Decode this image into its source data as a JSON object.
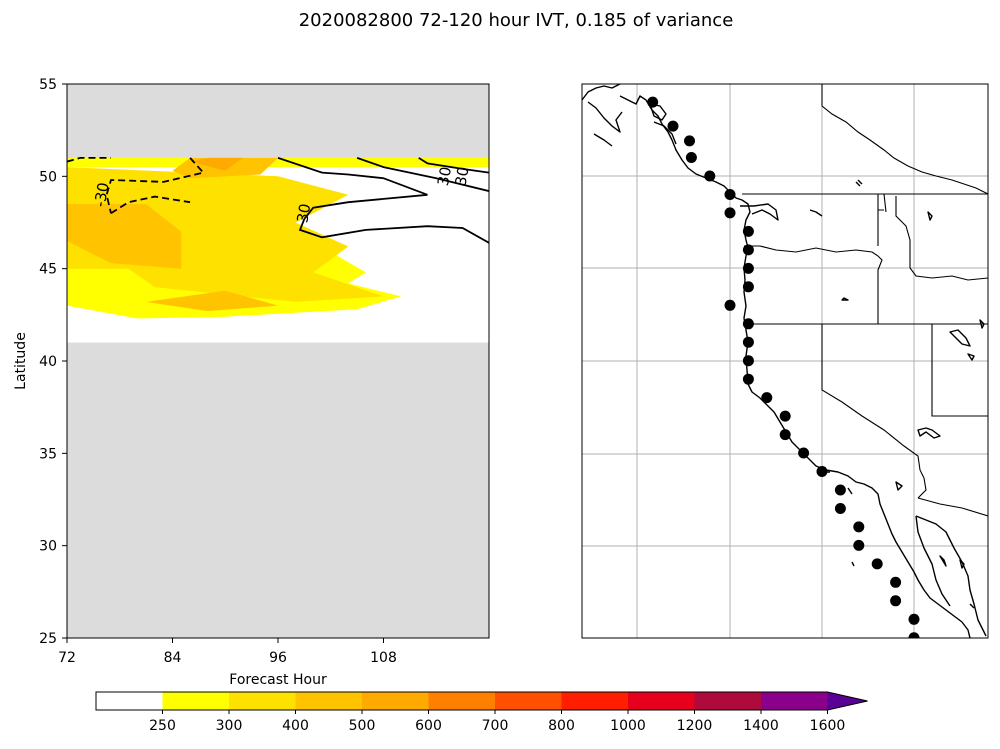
{
  "chart_data": [
    {
      "type": "contour",
      "title": "2020082800 72-120 hour IVT, 0.185 of variance",
      "xlabel": "Forecast Hour",
      "ylabel": "Latitude",
      "xlim": [
        72,
        120
      ],
      "ylim": [
        25,
        55
      ],
      "xticks": [
        72,
        84,
        96,
        108
      ],
      "yticks": [
        25,
        30,
        35,
        40,
        45,
        50,
        55
      ],
      "missing_color": "#dcdcdc",
      "data_lat_range": [
        41,
        51
      ],
      "contour_labels": [
        {
          "text": "-30",
          "x": 76,
          "y": 49
        },
        {
          "text": "30",
          "x": 99,
          "y": 48
        },
        {
          "text": "30",
          "x": 115,
          "y": 50
        },
        {
          "text": "30",
          "x": 117,
          "y": 50
        }
      ],
      "fill_regions": [
        {
          "level": "250-300",
          "color": "#ffff00",
          "polygon": [
            [
              72,
              43
            ],
            [
              76,
              44.3
            ],
            [
              72,
              45
            ],
            [
              72,
              50.5
            ],
            [
              96,
              50.5
            ],
            [
              120,
              50.5
            ],
            [
              120,
              51
            ],
            [
              72,
              51
            ],
            [
              72,
              50
            ],
            [
              76,
              47
            ],
            [
              72,
              46
            ],
            [
              72,
              43
            ],
            [
              80,
              42.3
            ],
            [
              90,
              42.4
            ],
            [
              105,
              42.8
            ],
            [
              110,
              43.5
            ],
            [
              104,
              44.2
            ],
            [
              106,
              44.8
            ],
            [
              98,
              47
            ],
            [
              92,
              47
            ],
            [
              84,
              47.3
            ],
            [
              80,
              48.3
            ],
            [
              72,
              47.5
            ]
          ]
        },
        {
          "level": "300-400",
          "color": "#ffe100",
          "polygon": [
            [
              72,
              45
            ],
            [
              79,
              45
            ],
            [
              82,
              44
            ],
            [
              98,
              43.2
            ],
            [
              108,
              43.5
            ],
            [
              100,
              44.8
            ],
            [
              104,
              46.2
            ],
            [
              98,
              47.5
            ],
            [
              104,
              49
            ],
            [
              96,
              50
            ],
            [
              72,
              50.5
            ]
          ]
        },
        {
          "level": "400-500",
          "color": "#ffc300",
          "polygon": [
            [
              72,
              46.5
            ],
            [
              77,
              45.3
            ],
            [
              85,
              45
            ],
            [
              85,
              47
            ],
            [
              81,
              48.5
            ],
            [
              72,
              48.5
            ]
          ]
        },
        {
          "level": "400-500",
          "color": "#ffc300",
          "polygon": [
            [
              81,
              43.2
            ],
            [
              88,
              42.7
            ],
            [
              96,
              43
            ],
            [
              90,
              43.8
            ]
          ]
        },
        {
          "level": "400-500",
          "color": "#ffc300",
          "polygon": [
            [
              84,
              50.3
            ],
            [
              86,
              51
            ],
            [
              96,
              51
            ],
            [
              94,
              50.1
            ],
            [
              86,
              49.9
            ]
          ]
        },
        {
          "level": "500-600",
          "color": "#ffaa00",
          "polygon": [
            [
              86,
              50.8
            ],
            [
              88,
              51
            ],
            [
              92,
              51
            ],
            [
              90,
              50.3
            ]
          ]
        }
      ],
      "contour_lines": [
        {
          "value": -30,
          "dashed": true,
          "points": [
            [
              72,
              50.8
            ],
            [
              73.5,
              51
            ],
            [
              77,
              51
            ]
          ]
        },
        {
          "value": -30,
          "dashed": true,
          "points": [
            [
              86,
              51
            ],
            [
              87.5,
              50.2
            ],
            [
              83,
              49.7
            ],
            [
              77,
              49.8
            ],
            [
              76.5,
              49
            ],
            [
              77,
              48
            ]
          ]
        },
        {
          "value": -30,
          "dashed": true,
          "points": [
            [
              77,
              48
            ],
            [
              79,
              48.6
            ],
            [
              82,
              48.9
            ],
            [
              86,
              48.6
            ]
          ]
        },
        {
          "value": 30,
          "dashed": false,
          "points": [
            [
              96,
              51
            ],
            [
              101,
              50.2
            ],
            [
              104,
              50.1
            ],
            [
              108,
              49.9
            ],
            [
              113,
              49
            ]
          ]
        },
        {
          "value": 30,
          "dashed": false,
          "points": [
            [
              113,
              49
            ],
            [
              104,
              48.6
            ],
            [
              100,
              48.3
            ],
            [
              99,
              47.7
            ]
          ]
        },
        {
          "value": 30,
          "dashed": false,
          "points": [
            [
              99,
              47.7
            ],
            [
              98.5,
              47.1
            ],
            [
              101,
              46.7
            ],
            [
              106,
              47.1
            ],
            [
              113,
              47.3
            ],
            [
              117,
              47.2
            ],
            [
              120,
              46.4
            ]
          ]
        },
        {
          "value": 30,
          "dashed": false,
          "points": [
            [
              105,
              51
            ],
            [
              108,
              50.5
            ],
            [
              114,
              49.9
            ],
            [
              120,
              49.2
            ]
          ]
        },
        {
          "value": 30,
          "dashed": false,
          "points": [
            [
              112,
              51
            ],
            [
              113,
              50.7
            ],
            [
              117,
              50.4
            ],
            [
              120,
              50.2
            ]
          ]
        }
      ]
    },
    {
      "type": "map",
      "markers": [
        {
          "lon": -125.8,
          "lat": 54.0
        },
        {
          "lon": -124.7,
          "lat": 52.7
        },
        {
          "lon": -123.8,
          "lat": 51.9
        },
        {
          "lon": -123.7,
          "lat": 51.0
        },
        {
          "lon": -122.7,
          "lat": 50.0
        },
        {
          "lon": -121.6,
          "lat": 49.0
        },
        {
          "lon": -121.6,
          "lat": 48.0
        },
        {
          "lon": -120.6,
          "lat": 47.0
        },
        {
          "lon": -120.6,
          "lat": 46.0
        },
        {
          "lon": -120.6,
          "lat": 45.0
        },
        {
          "lon": -120.6,
          "lat": 44.0
        },
        {
          "lon": -121.6,
          "lat": 43.0
        },
        {
          "lon": -120.6,
          "lat": 42.0
        },
        {
          "lon": -120.6,
          "lat": 41.0
        },
        {
          "lon": -120.6,
          "lat": 40.0
        },
        {
          "lon": -120.6,
          "lat": 39.0
        },
        {
          "lon": -119.6,
          "lat": 38.0
        },
        {
          "lon": -118.6,
          "lat": 37.0
        },
        {
          "lon": -118.6,
          "lat": 36.0
        },
        {
          "lon": -117.6,
          "lat": 35.0
        },
        {
          "lon": -116.6,
          "lat": 34.0
        },
        {
          "lon": -115.6,
          "lat": 33.0
        },
        {
          "lon": -115.6,
          "lat": 32.0
        },
        {
          "lon": -114.6,
          "lat": 31.0
        },
        {
          "lon": -114.6,
          "lat": 30.0
        },
        {
          "lon": -113.6,
          "lat": 29.0
        },
        {
          "lon": -112.6,
          "lat": 28.0
        },
        {
          "lon": -112.6,
          "lat": 27.0
        },
        {
          "lon": -111.6,
          "lat": 26.0
        },
        {
          "lon": -111.6,
          "lat": 25.0
        }
      ]
    },
    {
      "type": "colorbar",
      "ticks": [
        "250",
        "300",
        "400",
        "500",
        "600",
        "700",
        "800",
        "1000",
        "1200",
        "1400",
        "1600"
      ],
      "bins": [
        {
          "from": null,
          "to": 250,
          "color": "#ffffff"
        },
        {
          "from": 250,
          "to": 300,
          "color": "#ffff00"
        },
        {
          "from": 300,
          "to": 400,
          "color": "#ffe100"
        },
        {
          "from": 400,
          "to": 500,
          "color": "#ffc300"
        },
        {
          "from": 500,
          "to": 600,
          "color": "#ffaa00"
        },
        {
          "from": 600,
          "to": 700,
          "color": "#ff8000"
        },
        {
          "from": 700,
          "to": 800,
          "color": "#ff5000"
        },
        {
          "from": 800,
          "to": 1000,
          "color": "#ff1e00"
        },
        {
          "from": 1000,
          "to": 1200,
          "color": "#e6001e"
        },
        {
          "from": 1200,
          "to": 1400,
          "color": "#ae0a3c"
        },
        {
          "from": 1400,
          "to": 1600,
          "color": "#8b008b"
        },
        {
          "from": 1600,
          "to": null,
          "color": "#5a0096"
        }
      ],
      "extend": "max"
    }
  ]
}
